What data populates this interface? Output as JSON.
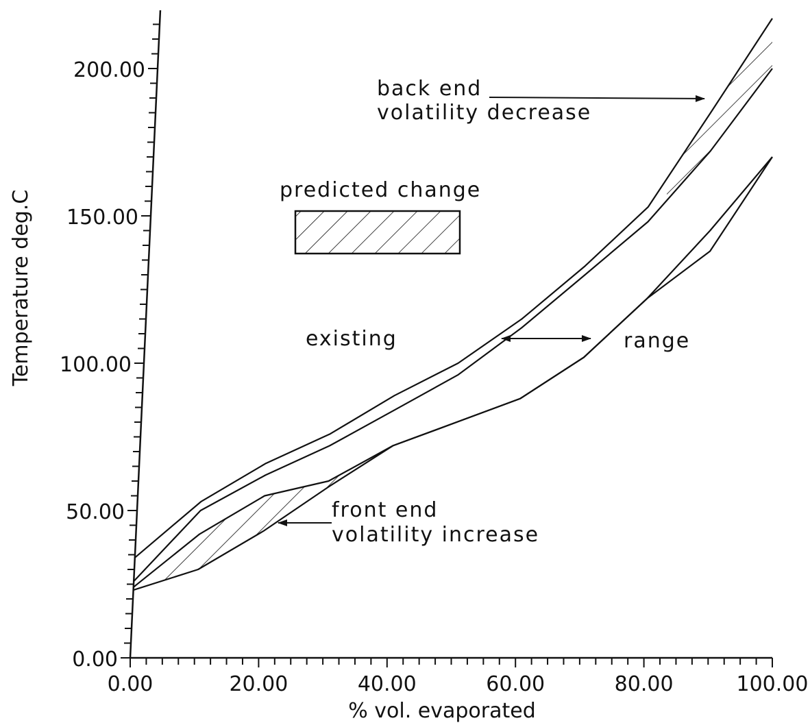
{
  "chart_data": {
    "type": "line",
    "title": "",
    "xlabel": "% vol. evaporated",
    "ylabel": "Temperature deg.C",
    "xlim": [
      0,
      100
    ],
    "ylim": [
      0,
      200
    ],
    "x_tick_labels": [
      "0.00",
      "20.00",
      "40.00",
      "60.00",
      "80.00",
      "100.00"
    ],
    "y_tick_labels": [
      "0.00",
      "50.00",
      "100.00",
      "150.00",
      "200.00"
    ],
    "grid": false,
    "series": [
      {
        "name": "",
        "x": [
          0,
          10,
          20,
          30,
          40,
          50,
          60,
          70,
          80,
          90,
          100
        ],
        "y": [
          34,
          53,
          66,
          76,
          89,
          100,
          115,
          133,
          153,
          185,
          217
        ]
      },
      {
        "name": "",
        "x": [
          0,
          10,
          20,
          30,
          40,
          50,
          60,
          70,
          80,
          90,
          100
        ],
        "y": [
          26,
          50,
          62,
          72,
          84,
          96,
          112,
          130,
          148,
          172,
          200
        ]
      },
      {
        "name": "",
        "x": [
          0,
          10,
          20,
          30,
          40,
          50,
          60,
          70,
          80,
          90,
          100
        ],
        "y": [
          24,
          42,
          55,
          60,
          72,
          80,
          88,
          102,
          122,
          145,
          170
        ]
      },
      {
        "name": "",
        "x": [
          0,
          10,
          20,
          30,
          40,
          50,
          60,
          70,
          80,
          90,
          100
        ],
        "y": [
          23,
          30,
          43,
          58,
          72,
          80,
          88,
          102,
          122,
          138,
          170
        ]
      }
    ],
    "annotations": [
      {
        "id": "back-end",
        "lines": [
          "back end",
          "volatility decrease"
        ]
      },
      {
        "id": "predicted",
        "lines": [
          "predicted change"
        ]
      },
      {
        "id": "existing",
        "lines": [
          "existing"
        ]
      },
      {
        "id": "range",
        "lines": [
          "range"
        ]
      },
      {
        "id": "front-end",
        "lines": [
          "front end",
          "volatility increase"
        ]
      }
    ],
    "shaded_regions": [
      {
        "name": "front end volatility increase",
        "x_range": [
          0,
          40
        ]
      },
      {
        "name": "back end volatility decrease",
        "x_range": [
          83,
          100
        ]
      }
    ]
  }
}
